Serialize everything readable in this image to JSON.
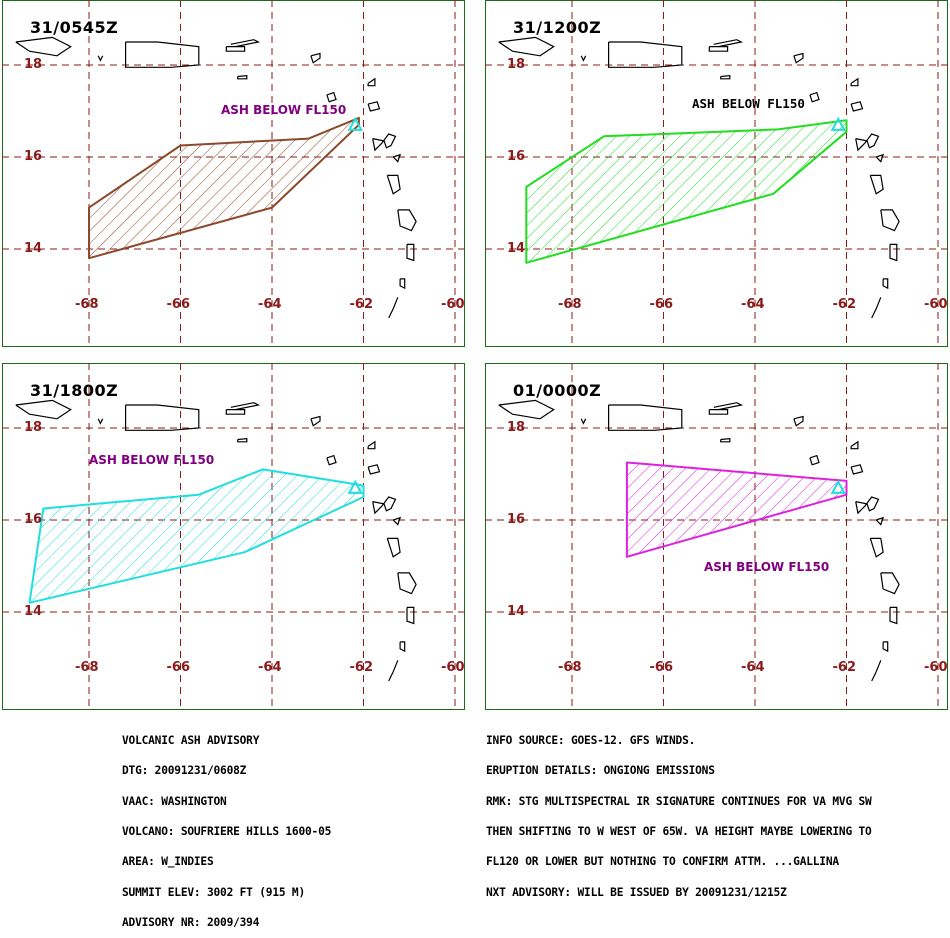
{
  "panels": [
    {
      "time": "31/0545Z",
      "ash_label": "ASH BELOW FL150",
      "ash_label_color": "#800080",
      "outline_color": "#8b4a2b",
      "polygon": [
        [
          -68.0,
          14.9
        ],
        [
          -66.0,
          16.25
        ],
        [
          -63.2,
          16.4
        ],
        [
          -62.1,
          16.85
        ],
        [
          -62.1,
          16.7
        ],
        [
          -64.0,
          14.9
        ],
        [
          -68.0,
          13.8
        ]
      ]
    },
    {
      "time": "31/1200Z",
      "ash_label": "ASH BELOW FL150",
      "ash_label_color": "#000000",
      "outline_color": "#22dd22",
      "polygon": [
        [
          -69.0,
          15.35
        ],
        [
          -67.3,
          16.45
        ],
        [
          -63.5,
          16.6
        ],
        [
          -62.0,
          16.8
        ],
        [
          -62.0,
          16.55
        ],
        [
          -63.6,
          15.2
        ],
        [
          -69.0,
          13.7
        ]
      ]
    },
    {
      "time": "31/1800Z",
      "ash_label": "ASH BELOW FL150",
      "ash_label_color": "#800080",
      "outline_color": "#22dddd",
      "polygon": [
        [
          -69.0,
          16.25
        ],
        [
          -65.6,
          16.55
        ],
        [
          -64.2,
          17.1
        ],
        [
          -62.0,
          16.75
        ],
        [
          -62.0,
          16.5
        ],
        [
          -64.6,
          15.3
        ],
        [
          -69.3,
          14.2
        ]
      ]
    },
    {
      "time": "01/0000Z",
      "ash_label": "ASH BELOW FL150",
      "ash_label_color": "#800080",
      "outline_color": "#dd22dd",
      "polygon": [
        [
          -66.8,
          17.25
        ],
        [
          -62.0,
          16.85
        ],
        [
          -62.0,
          16.55
        ],
        [
          -66.8,
          15.2
        ]
      ]
    }
  ],
  "map": {
    "lat_ticks": [
      "18",
      "16",
      "14"
    ],
    "lon_ticks": [
      "-68",
      "-66",
      "-64",
      "-62",
      "-60"
    ],
    "grid_color": "#8b1a1a",
    "volcano_marker_color": "#22dddd",
    "volcano": [
      -62.18,
      16.72
    ]
  },
  "advisory_left": [
    "VOLCANIC ASH ADVISORY",
    "DTG: 20091231/0608Z",
    "VAAC: WASHINGTON",
    "VOLCANO: SOUFRIERE HILLS 1600-05",
    "AREA: W_INDIES",
    "SUMMIT ELEV: 3002 FT (915 M)",
    "ADVISORY NR: 2009/394"
  ],
  "advisory_right": [
    "INFO SOURCE: GOES-12. GFS WINDS.",
    "ERUPTION DETAILS: ONGIONG EMISSIONS",
    "RMK: STG MULTISPECTRAL IR SIGNATURE CONTINUES FOR VA MVG SW",
    "THEN SHIFTING TO W WEST OF 65W. VA HEIGHT MAYBE LOWERING TO",
    "FL120 OR LOWER BUT NOTHING TO CONFIRM ATTM. ...GALLINA",
    "NXT ADVISORY: WILL BE ISSUED BY 20091231/1215Z"
  ]
}
